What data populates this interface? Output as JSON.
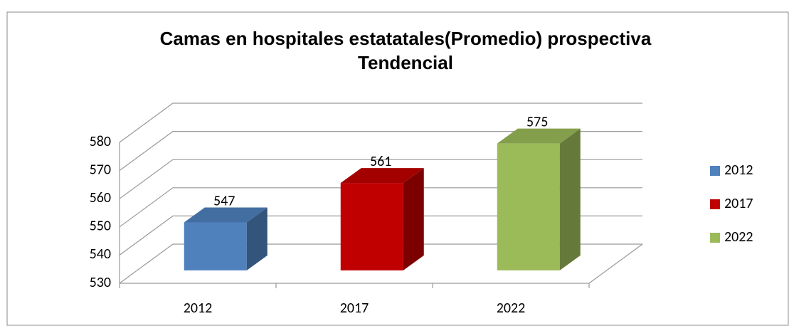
{
  "chart_data": {
    "type": "bar3d",
    "title": [
      "Camas en hospitales estatatales(Promedio) prospectiva",
      "Tendencial"
    ],
    "categories": [
      "2012",
      "2017",
      "2022"
    ],
    "values": [
      547,
      561,
      575
    ],
    "colors": [
      "#4f81bd",
      "#c00000",
      "#9bbb59"
    ],
    "ylim": [
      530,
      580
    ],
    "yticks": [
      530,
      540,
      550,
      560,
      570,
      580
    ],
    "grid": true,
    "legend": "right"
  }
}
